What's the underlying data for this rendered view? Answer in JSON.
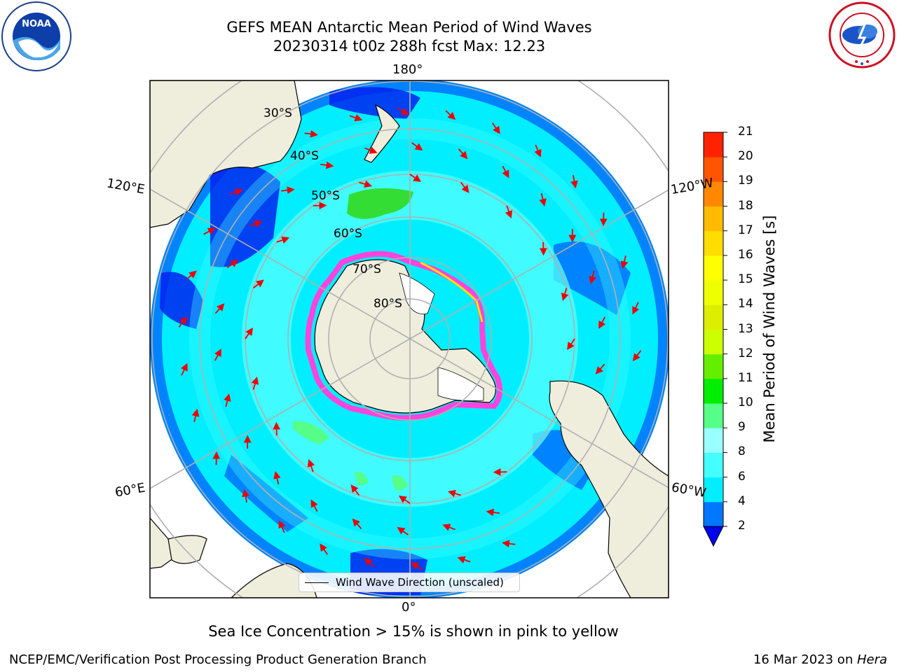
{
  "title": {
    "line1": "GEFS MEAN Antarctic Mean Period of Wind Waves",
    "line2": "20230314 t00z 288h fcst   Max: 12.23"
  },
  "map": {
    "projection": "south polar stereographic",
    "lon_labels": {
      "top": "180°",
      "upper_left": "120°E",
      "upper_right": "120°W",
      "lower_left": "60°E",
      "lower_right": "60°W",
      "bottom": "0°"
    },
    "lat_labels": [
      "30°S",
      "40°S",
      "50°S",
      "60°S",
      "70°S",
      "80°S"
    ],
    "legend_label": "Wind Wave Direction (unscaled)",
    "colors": {
      "land": "#efeedd",
      "ocean_light": "#55ffff",
      "ocean_cyan": "#00eeff",
      "ocean_blue": "#0077ff",
      "ocean_dark": "#0022ee",
      "green": "#33dd33",
      "arrows": "#ee0000",
      "sea_ice": "#ff44dd"
    }
  },
  "colorbar": {
    "title": "Mean Period of Wind Waves [s]",
    "ticks": [
      "2",
      "4",
      "6",
      "8",
      "9",
      "10",
      "11",
      "12",
      "13",
      "14",
      "15",
      "16",
      "17",
      "18",
      "19",
      "20",
      "21"
    ],
    "colors": [
      "#0077ff",
      "#00eeff",
      "#44ffff",
      "#99ffff",
      "#55ff88",
      "#00ee00",
      "#66ee00",
      "#ccff00",
      "#ddee00",
      "#eeff00",
      "#ffff00",
      "#ffdd00",
      "#ffbb00",
      "#ff8800",
      "#ff5500",
      "#ff2200"
    ],
    "extend_min_color": "#0000ee"
  },
  "caption": "Sea Ice Concentration > 15% is shown in pink to yellow",
  "footer": {
    "left": "NCEP/EMC/Verification Post Processing Product Generation Branch",
    "right_prefix": "16 Mar 2023 on ",
    "right_machine": "Hera"
  },
  "logos": {
    "left": "NOAA",
    "right": "NATIONAL WEATHER SERVICE"
  }
}
